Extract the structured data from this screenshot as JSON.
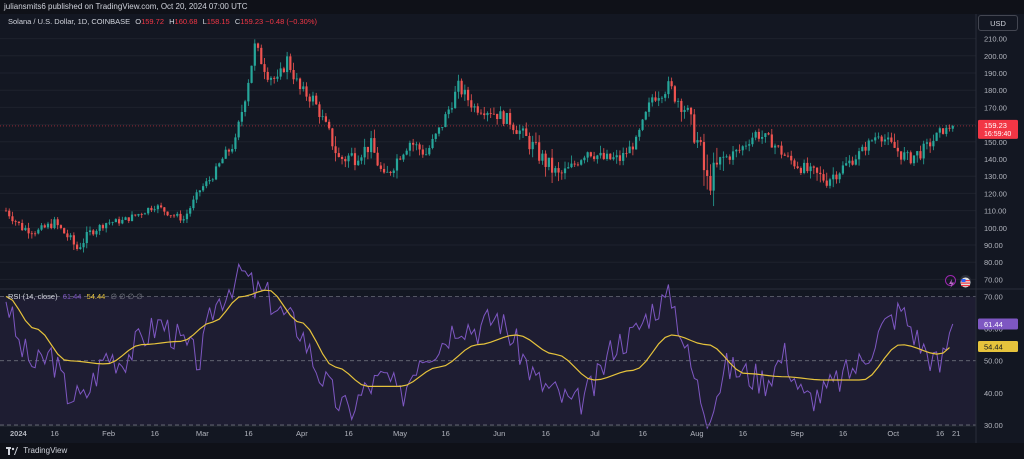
{
  "header": {
    "published": "juliansmits6 published on TradingView.com, Oct 20, 2024 07:00 UTC"
  },
  "legend": {
    "symbol": "Solana / U.S. Dollar, 1D, COINBASE",
    "o_label": "O",
    "o": "159.72",
    "h_label": "H",
    "h": "160.68",
    "l_label": "L",
    "l": "158.15",
    "c_label": "C",
    "c": "159.23",
    "change": "−0.48 (−0.30%)"
  },
  "currency_button": "USD",
  "price_tag": {
    "value": "159.23",
    "countdown": "16:59:40"
  },
  "rsi_legend": {
    "label": "RSI (14, close)",
    "rsi": "61.44",
    "ma": "54.44",
    "dots": "∅ ∅ ∅ ∅"
  },
  "rsi_tags": {
    "rsi": "61.44",
    "ma": "54.44"
  },
  "brand": {
    "name": "TradingView"
  },
  "colors": {
    "up": "#26a69a",
    "down": "#ef5350",
    "rsi": "#7e57c2",
    "rsi_ma": "#e6c33c",
    "price_tag": "#f23645",
    "background": "#131722"
  },
  "chart_data": [
    {
      "type": "candlestick",
      "series": [
        {
          "name": "Solana / U.S. Dollar",
          "x": [
            "2024-01-01",
            "2024-01-06",
            "2024-01-11",
            "2024-01-16",
            "2024-01-20",
            "2024-01-23",
            "2024-01-27",
            "2024-02-01",
            "2024-02-06",
            "2024-02-11",
            "2024-02-16",
            "2024-02-21",
            "2024-02-25",
            "2024-03-01",
            "2024-03-05",
            "2024-03-08",
            "2024-03-12",
            "2024-03-14",
            "2024-03-18",
            "2024-03-22",
            "2024-03-25",
            "2024-03-28",
            "2024-04-01",
            "2024-04-05",
            "2024-04-10",
            "2024-04-13",
            "2024-04-18",
            "2024-04-23",
            "2024-04-27",
            "2024-05-01",
            "2024-05-05",
            "2024-05-10",
            "2024-05-15",
            "2024-05-20",
            "2024-05-25",
            "2024-05-30",
            "2024-06-05",
            "2024-06-10",
            "2024-06-15",
            "2024-06-20",
            "2024-06-24",
            "2024-06-29",
            "2024-07-04",
            "2024-07-09",
            "2024-07-14",
            "2024-07-19",
            "2024-07-24",
            "2024-07-29",
            "2024-08-02",
            "2024-08-05",
            "2024-08-10",
            "2024-08-15",
            "2024-08-20",
            "2024-08-25",
            "2024-08-30",
            "2024-09-06",
            "2024-09-11",
            "2024-09-16",
            "2024-09-21",
            "2024-09-27",
            "2024-10-01",
            "2024-10-06",
            "2024-10-11",
            "2024-10-16",
            "2024-10-20"
          ],
          "close": [
            110,
            100,
            98,
            103,
            95,
            88,
            97,
            103,
            104,
            108,
            113,
            108,
            105,
            122,
            130,
            140,
            150,
            168,
            205,
            190,
            185,
            198,
            180,
            175,
            155,
            140,
            142,
            148,
            128,
            140,
            150,
            143,
            160,
            182,
            170,
            168,
            162,
            152,
            140,
            130,
            135,
            145,
            140,
            140,
            150,
            176,
            182,
            170,
            150,
            125,
            140,
            145,
            155,
            150,
            140,
            132,
            128,
            135,
            143,
            155,
            148,
            140,
            145,
            155,
            159.23
          ],
          "high": [
            114,
            105,
            103,
            108,
            100,
            92,
            101,
            106,
            107,
            112,
            117,
            111,
            109,
            125,
            134,
            145,
            158,
            175,
            210,
            198,
            192,
            205,
            188,
            180,
            160,
            150,
            150,
            153,
            140,
            145,
            158,
            150,
            165,
            190,
            175,
            172,
            168,
            160,
            152,
            140,
            140,
            150,
            150,
            145,
            155,
            180,
            192,
            182,
            165,
            150,
            145,
            150,
            160,
            158,
            145,
            140,
            135,
            140,
            148,
            158,
            155,
            150,
            152,
            160,
            160.68
          ],
          "low": [
            106,
            96,
            94,
            100,
            90,
            80,
            93,
            100,
            101,
            105,
            109,
            105,
            102,
            118,
            127,
            136,
            146,
            160,
            195,
            185,
            180,
            192,
            175,
            168,
            148,
            128,
            135,
            140,
            122,
            135,
            145,
            138,
            155,
            175,
            165,
            160,
            155,
            145,
            132,
            125,
            128,
            140,
            135,
            135,
            145,
            170,
            175,
            165,
            140,
            110,
            132,
            140,
            150,
            145,
            135,
            125,
            120,
            128,
            138,
            150,
            142,
            135,
            140,
            150,
            158.15
          ]
        }
      ],
      "ylim": [
        65,
        215
      ],
      "y_ticks": [
        "210.00",
        "200.00",
        "190.00",
        "180.00",
        "170.00",
        "160.00",
        "150.00",
        "140.00",
        "130.00",
        "120.00",
        "110.00",
        "100.00",
        "90.00",
        "80.00",
        "70.00"
      ],
      "current_price_line": 159.23
    },
    {
      "type": "line",
      "title": "RSI (14, close)",
      "series": [
        {
          "name": "RSI",
          "x": [
            "2024-01-01",
            "2024-01-05",
            "2024-01-10",
            "2024-01-15",
            "2024-01-20",
            "2024-01-25",
            "2024-02-01",
            "2024-02-06",
            "2024-02-12",
            "2024-02-18",
            "2024-02-24",
            "2024-03-01",
            "2024-03-05",
            "2024-03-10",
            "2024-03-14",
            "2024-03-18",
            "2024-03-22",
            "2024-03-26",
            "2024-04-01",
            "2024-04-06",
            "2024-04-12",
            "2024-04-16",
            "2024-04-22",
            "2024-04-28",
            "2024-05-02",
            "2024-05-08",
            "2024-05-14",
            "2024-05-20",
            "2024-05-26",
            "2024-06-01",
            "2024-06-07",
            "2024-06-13",
            "2024-06-19",
            "2024-06-25",
            "2024-07-01",
            "2024-07-07",
            "2024-07-13",
            "2024-07-19",
            "2024-07-25",
            "2024-07-31",
            "2024-08-05",
            "2024-08-11",
            "2024-08-17",
            "2024-08-23",
            "2024-08-29",
            "2024-09-04",
            "2024-09-10",
            "2024-09-16",
            "2024-09-22",
            "2024-09-28",
            "2024-10-04",
            "2024-10-10",
            "2024-10-16",
            "2024-10-20"
          ],
          "values": [
            70,
            55,
            48,
            52,
            40,
            38,
            52,
            50,
            57,
            62,
            56,
            50,
            66,
            73,
            78,
            72,
            70,
            65,
            60,
            48,
            38,
            34,
            42,
            45,
            38,
            52,
            55,
            62,
            60,
            64,
            55,
            44,
            40,
            36,
            42,
            55,
            58,
            66,
            70,
            48,
            33,
            48,
            46,
            44,
            52,
            38,
            40,
            45,
            50,
            60,
            66,
            55,
            48,
            61.44
          ]
        },
        {
          "name": "RSI-based MA",
          "x": [
            "2024-01-01",
            "2024-01-10",
            "2024-01-20",
            "2024-02-01",
            "2024-02-12",
            "2024-02-24",
            "2024-03-05",
            "2024-03-14",
            "2024-03-22",
            "2024-04-01",
            "2024-04-12",
            "2024-04-22",
            "2024-05-02",
            "2024-05-14",
            "2024-05-26",
            "2024-06-07",
            "2024-06-19",
            "2024-07-01",
            "2024-07-13",
            "2024-07-25",
            "2024-08-05",
            "2024-08-17",
            "2024-08-29",
            "2024-09-10",
            "2024-09-22",
            "2024-10-04",
            "2024-10-16",
            "2024-10-20"
          ],
          "values": [
            70,
            60,
            50,
            49,
            55,
            56,
            62,
            70,
            72,
            62,
            48,
            42,
            42,
            48,
            55,
            58,
            52,
            44,
            47,
            58,
            55,
            46,
            45,
            44,
            44,
            55,
            52,
            54.44
          ]
        }
      ],
      "ylim": [
        30,
        72
      ],
      "y_ticks": [
        "70.00",
        "60.00",
        "50.00",
        "40.00",
        "30.00"
      ],
      "bands": [
        30,
        50,
        70
      ]
    }
  ],
  "x_axis": {
    "labels": [
      {
        "text": "2024",
        "date": "2024-01-01"
      },
      {
        "text": "16",
        "date": "2024-01-16"
      },
      {
        "text": "Feb",
        "date": "2024-02-01"
      },
      {
        "text": "16",
        "date": "2024-02-16"
      },
      {
        "text": "Mar",
        "date": "2024-03-01"
      },
      {
        "text": "16",
        "date": "2024-03-16"
      },
      {
        "text": "Apr",
        "date": "2024-04-01"
      },
      {
        "text": "16",
        "date": "2024-04-16"
      },
      {
        "text": "May",
        "date": "2024-05-01"
      },
      {
        "text": "16",
        "date": "2024-05-16"
      },
      {
        "text": "Jun",
        "date": "2024-06-01"
      },
      {
        "text": "16",
        "date": "2024-06-16"
      },
      {
        "text": "Jul",
        "date": "2024-07-01"
      },
      {
        "text": "16",
        "date": "2024-07-16"
      },
      {
        "text": "Aug",
        "date": "2024-08-01"
      },
      {
        "text": "16",
        "date": "2024-08-16"
      },
      {
        "text": "Sep",
        "date": "2024-09-01"
      },
      {
        "text": "16",
        "date": "2024-09-16"
      },
      {
        "text": "Oct",
        "date": "2024-10-01"
      },
      {
        "text": "16",
        "date": "2024-10-16"
      },
      {
        "text": "21",
        "date": "2024-10-21"
      }
    ]
  },
  "icons": {
    "lightning": "lightning-icon",
    "flag": "us-flag-icon",
    "logo": "tradingview-logo-icon"
  }
}
